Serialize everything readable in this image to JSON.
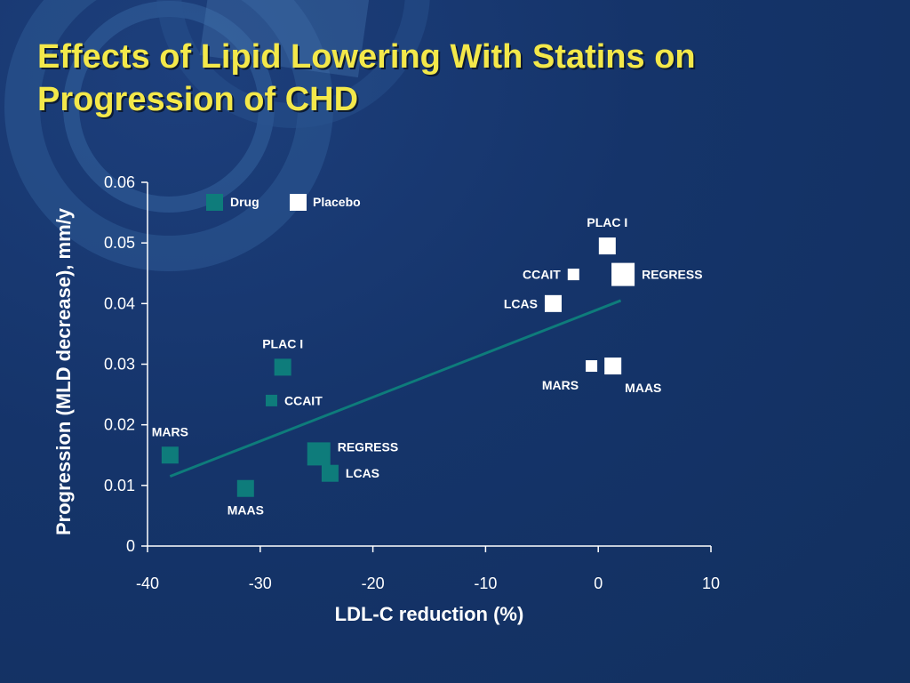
{
  "slide": {
    "title_line1": "Effects of Lipid Lowering With Statins on",
    "title_line2": "Progression of CHD"
  },
  "colors": {
    "background": "#15346a",
    "title": "#f3e84a",
    "drug": "#0e7c7b",
    "placebo": "#ffffff",
    "trendline": "#0e7c7b",
    "axis": "#ffffff"
  },
  "chart_data": {
    "type": "scatter",
    "xlabel": "LDL-C reduction (%)",
    "ylabel": "Progression (MLD decrease), mm/y",
    "xlim": [
      -40,
      10
    ],
    "ylim": [
      0,
      0.06
    ],
    "x_ticks": [
      "-40",
      "-30",
      "-20",
      "-10",
      "0",
      "10"
    ],
    "y_ticks": [
      "0",
      "0.01",
      "0.02",
      "0.03",
      "0.04",
      "0.05",
      "0.06"
    ],
    "grid": false,
    "legend_position": "top-left",
    "series": [
      {
        "name": "Drug",
        "points": [
          {
            "label": "MARS",
            "x": -38,
            "y": 0.015,
            "size": "medium",
            "label_pos": "above"
          },
          {
            "label": "MAAS",
            "x": -31.3,
            "y": 0.0095,
            "size": "medium",
            "label_pos": "below"
          },
          {
            "label": "PLAC I",
            "x": -28,
            "y": 0.0295,
            "size": "medium",
            "label_pos": "above"
          },
          {
            "label": "CCAIT",
            "x": -29,
            "y": 0.024,
            "size": "small",
            "label_pos": "right"
          },
          {
            "label": "REGRESS",
            "x": -24.8,
            "y": 0.0152,
            "size": "large",
            "label_pos": "right-up"
          },
          {
            "label": "LCAS",
            "x": -23.8,
            "y": 0.012,
            "size": "medium",
            "label_pos": "right"
          }
        ]
      },
      {
        "name": "Placebo",
        "points": [
          {
            "label": "PLAC I",
            "x": 0.8,
            "y": 0.0495,
            "size": "medium",
            "label_pos": "above"
          },
          {
            "label": "CCAIT",
            "x": -2.2,
            "y": 0.0448,
            "size": "small",
            "label_pos": "left"
          },
          {
            "label": "REGRESS",
            "x": 2.2,
            "y": 0.0448,
            "size": "large",
            "label_pos": "right"
          },
          {
            "label": "LCAS",
            "x": -4,
            "y": 0.04,
            "size": "medium",
            "label_pos": "left"
          },
          {
            "label": "MARS",
            "x": -0.6,
            "y": 0.0297,
            "size": "small",
            "label_pos": "below-left"
          },
          {
            "label": "MAAS",
            "x": 1.3,
            "y": 0.0297,
            "size": "medium",
            "label_pos": "below-right"
          }
        ]
      }
    ],
    "trendline": {
      "x1": -38,
      "y1": 0.0115,
      "x2": 2,
      "y2": 0.0405
    }
  }
}
